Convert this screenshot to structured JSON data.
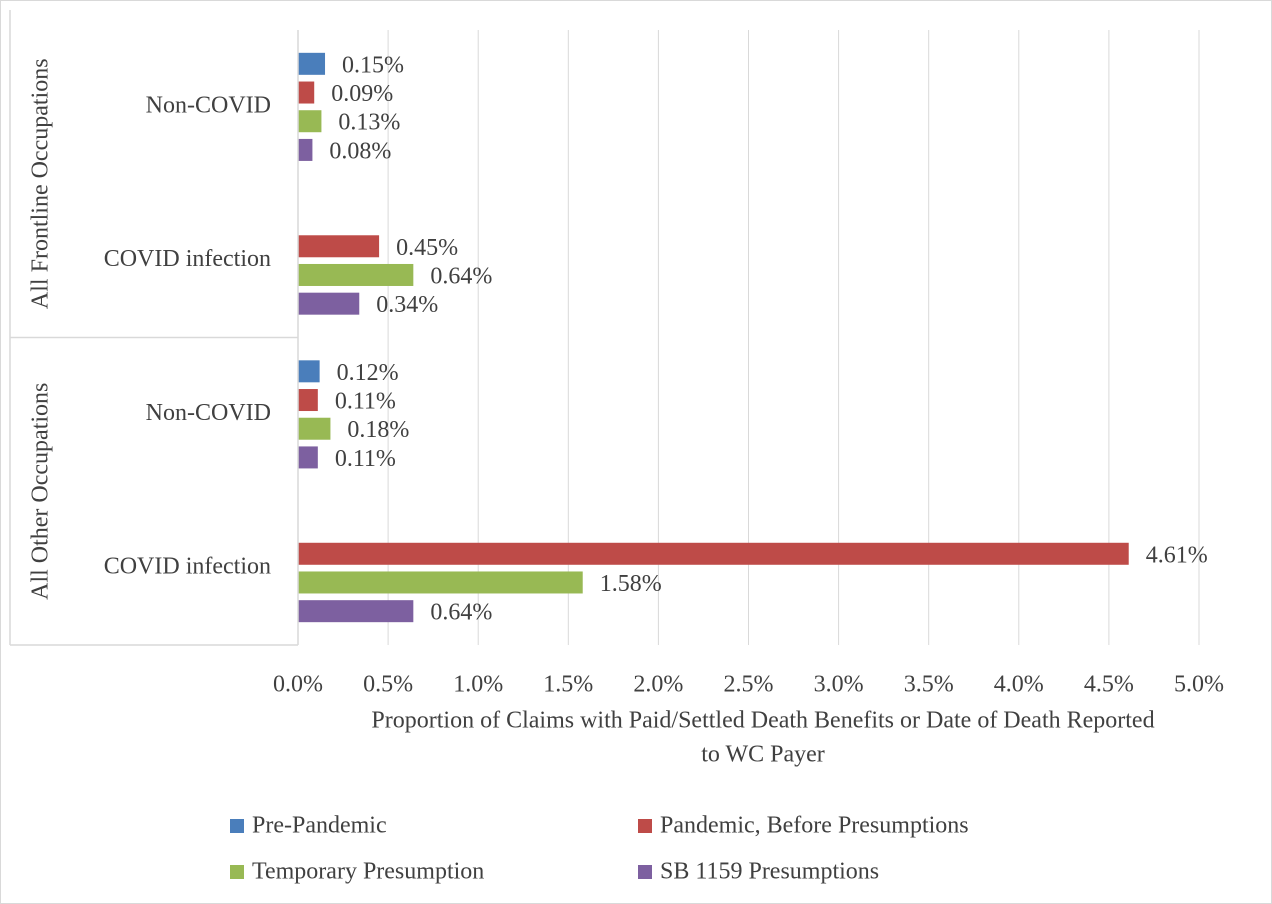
{
  "chart_data": {
    "type": "bar",
    "orientation": "horizontal",
    "groups": [
      {
        "name": "All Frontline Occupations",
        "categories": [
          "Non-COVID",
          "COVID infection"
        ]
      },
      {
        "name": "All Other Occupations",
        "categories": [
          "Non-COVID",
          "COVID infection"
        ]
      }
    ],
    "series": [
      {
        "name": "Pre-Pandemic",
        "color": "#4a7ebb",
        "values": [
          0.15,
          null,
          0.12,
          null
        ],
        "value_labels": [
          "0.15%",
          null,
          "0.12%",
          null
        ]
      },
      {
        "name": "Pandemic, Before Presumptions",
        "color": "#be4b48",
        "values": [
          0.09,
          0.45,
          0.11,
          4.61
        ],
        "value_labels": [
          "0.09%",
          "0.45%",
          "0.11%",
          "4.61%"
        ]
      },
      {
        "name": "Temporary Presumption",
        "color": "#98b954",
        "values": [
          0.13,
          0.64,
          0.18,
          1.58
        ],
        "value_labels": [
          "0.13%",
          "0.64%",
          "0.18%",
          "1.58%"
        ]
      },
      {
        "name": "SB 1159 Presumptions",
        "color": "#7d60a0",
        "values": [
          0.08,
          0.34,
          0.11,
          0.64
        ],
        "value_labels": [
          "0.08%",
          "0.34%",
          "0.11%",
          "0.64%"
        ]
      }
    ],
    "xlabel": [
      "Proportion of Claims with Paid/Settled Death Benefits or Date of Death Reported",
      "to WC Payer"
    ],
    "xlim": [
      0,
      5
    ],
    "xticks": [
      {
        "value": 0,
        "label": "0.0%"
      },
      {
        "value": 0.5,
        "label": "0.5%"
      },
      {
        "value": 1,
        "label": "1.0%"
      },
      {
        "value": 1.5,
        "label": "1.5%"
      },
      {
        "value": 2,
        "label": "2.0%"
      },
      {
        "value": 2.5,
        "label": "2.5%"
      },
      {
        "value": 3,
        "label": "3.0%"
      },
      {
        "value": 3.5,
        "label": "3.5%"
      },
      {
        "value": 4,
        "label": "4.0%"
      },
      {
        "value": 4.5,
        "label": "4.5%"
      },
      {
        "value": 5,
        "label": "5.0%"
      }
    ],
    "grid": true,
    "legend": "bottom"
  }
}
